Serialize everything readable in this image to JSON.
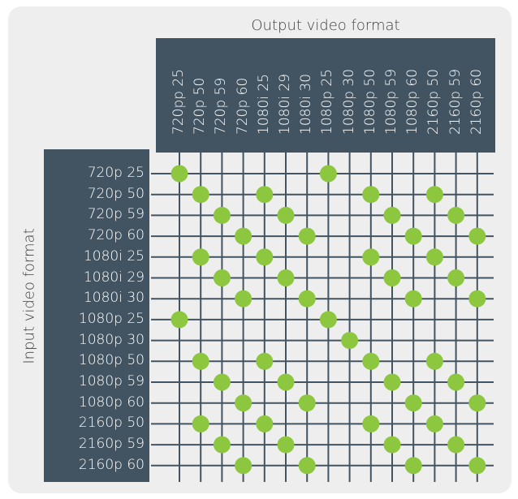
{
  "titles": {
    "output": "Output video format",
    "input": "Input video format"
  },
  "colors": {
    "panel": "#425462",
    "grid_line": "#425462",
    "dot": "#8dc63f",
    "background": "#eeeeee"
  },
  "chart_data": {
    "type": "heatmap",
    "x_label": "Output video format",
    "y_label": "Input video format",
    "output_formats": [
      "720pp 25",
      "720p 50",
      "720p 59",
      "720p 60",
      "1080i 25",
      "1080i 29",
      "1080i 30",
      "1080p 25",
      "1080p 30",
      "1080p 50",
      "1080p 59",
      "1080p 60",
      "2160p 50",
      "2160p 59",
      "2160p 60"
    ],
    "input_formats": [
      "720p 25",
      "720p 50",
      "720p 59",
      "720p 60",
      "1080i 25",
      "1080i 29",
      "1080i 30",
      "1080p 25",
      "1080p 30",
      "1080p 50",
      "1080p 59",
      "1080p 60",
      "2160p 50",
      "2160p 59",
      "2160p 60"
    ],
    "supported": [
      [
        0,
        7
      ],
      [
        1,
        4,
        9,
        12
      ],
      [
        2,
        5,
        10,
        13
      ],
      [
        3,
        6,
        11,
        14
      ],
      [
        1,
        4,
        9,
        12
      ],
      [
        2,
        5,
        10,
        13
      ],
      [
        3,
        6,
        11,
        14
      ],
      [
        0,
        7
      ],
      [
        8
      ],
      [
        1,
        4,
        9,
        12
      ],
      [
        2,
        5,
        10,
        13
      ],
      [
        3,
        6,
        11,
        14
      ],
      [
        1,
        4,
        9,
        12
      ],
      [
        2,
        5,
        10,
        13
      ],
      [
        3,
        6,
        11,
        14
      ]
    ]
  }
}
